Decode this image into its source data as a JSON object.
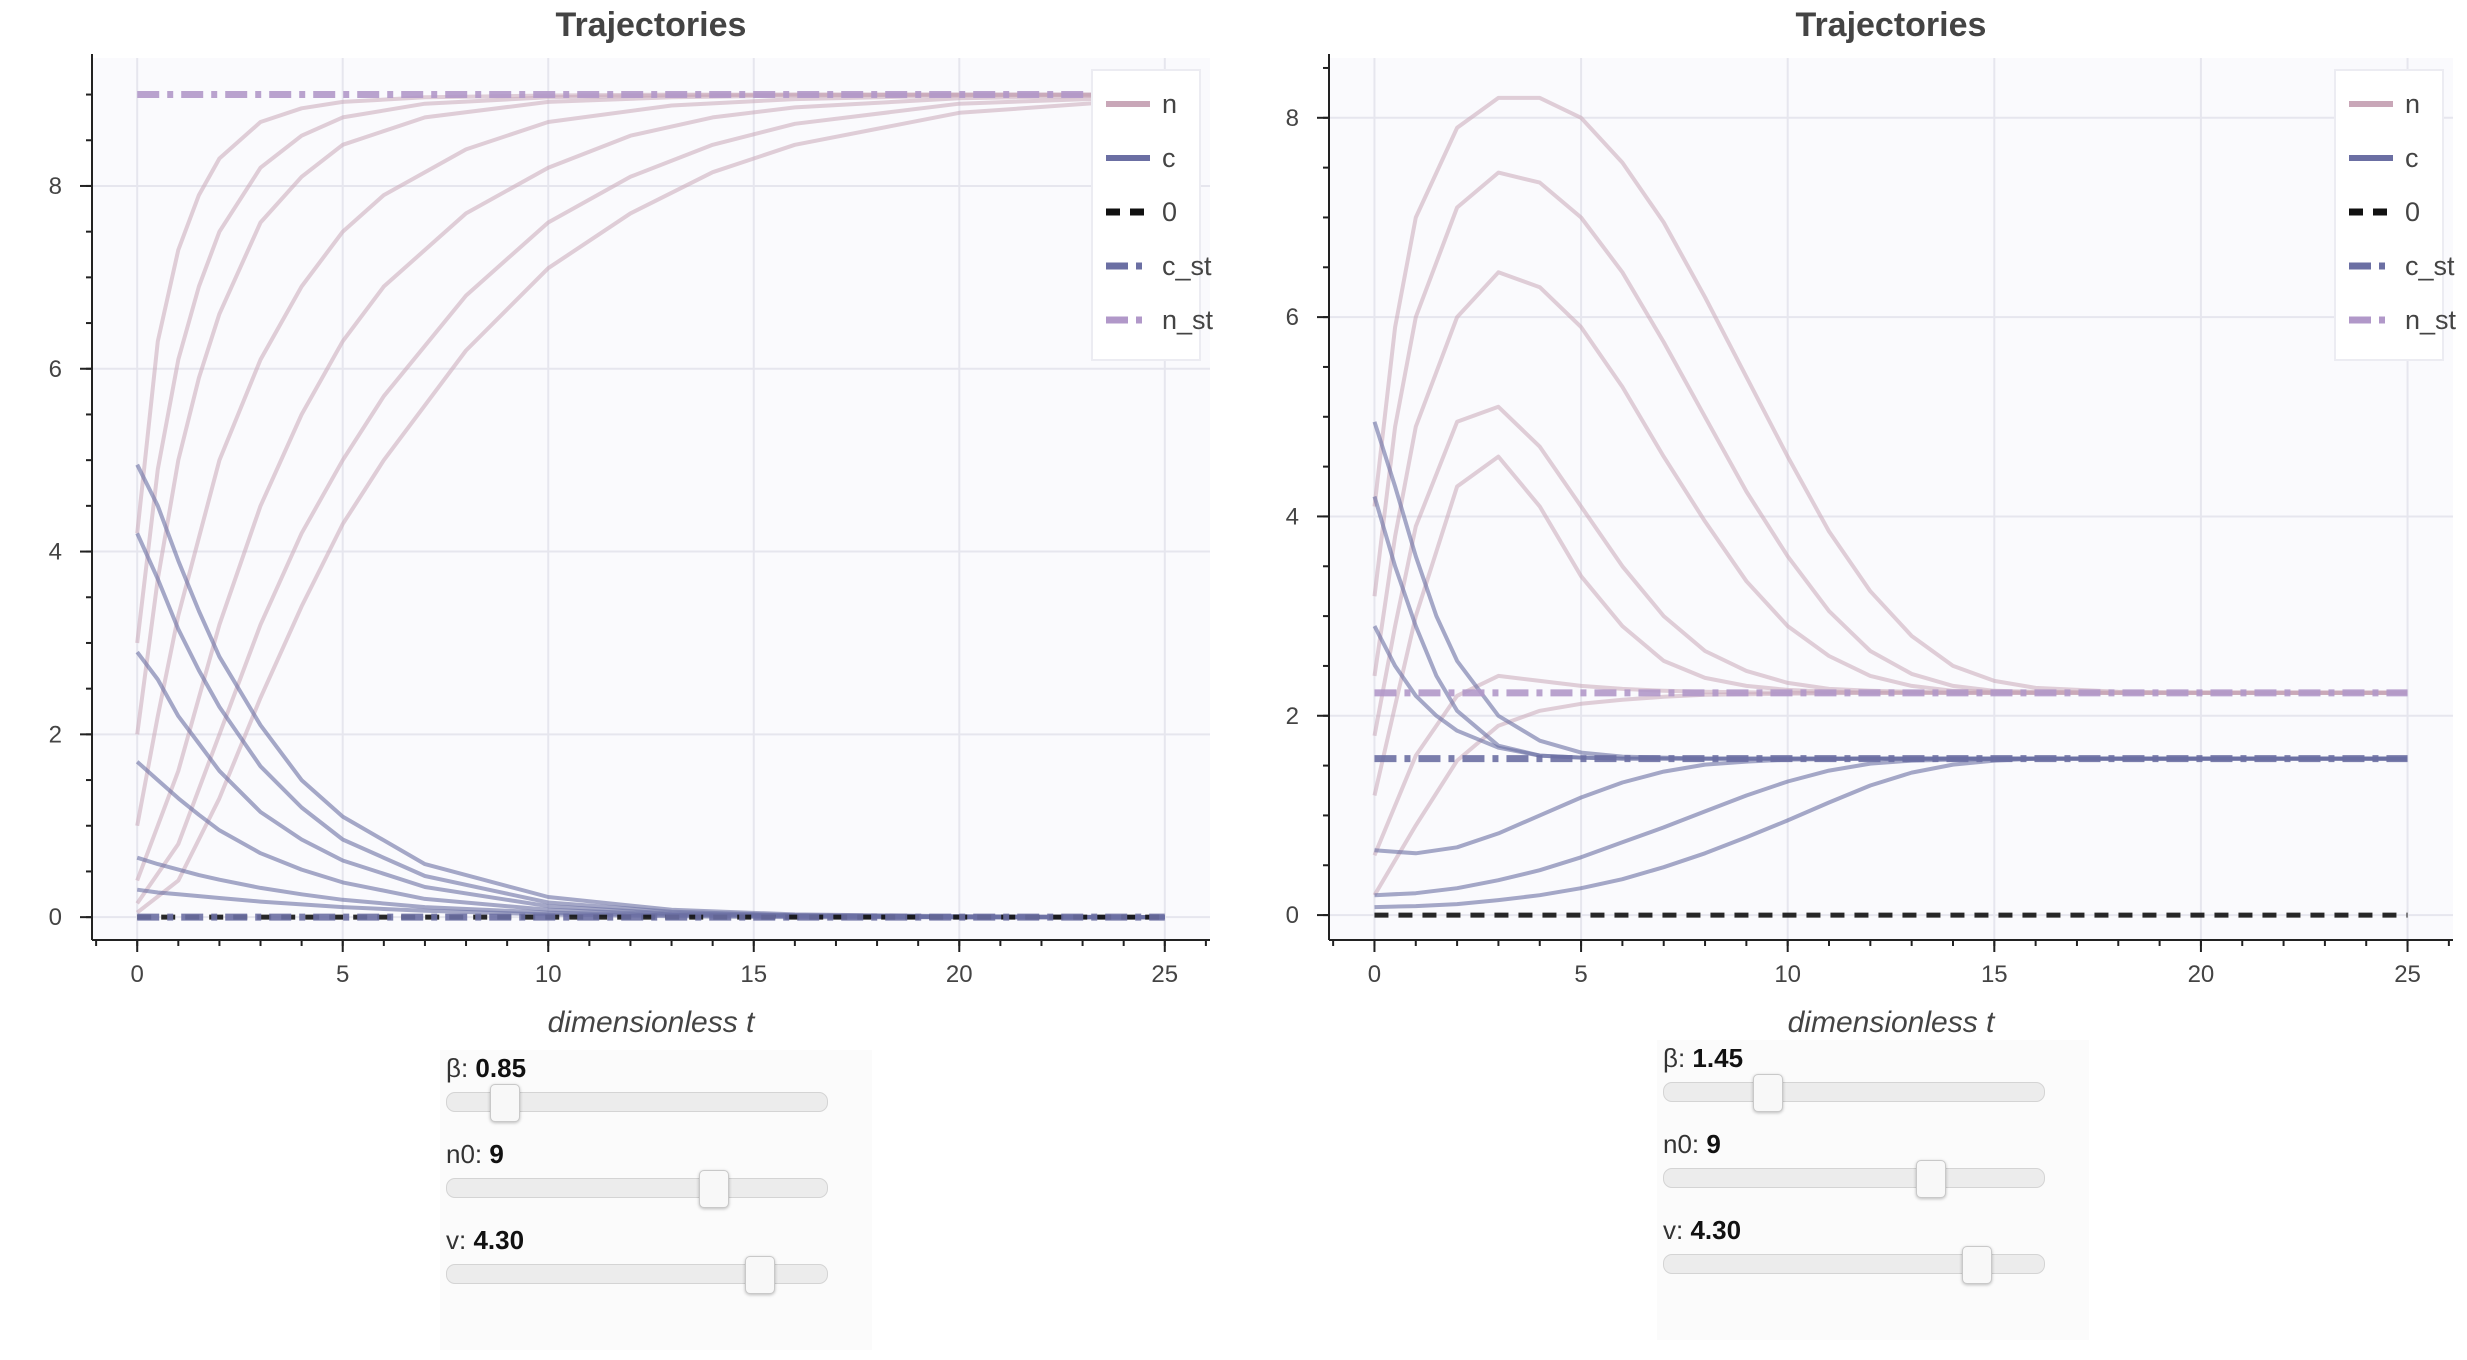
{
  "chart_data": [
    {
      "type": "line",
      "title": "Trajectories",
      "xlabel": "dimensionless t",
      "ylabel": "",
      "xlim": [
        -1.1,
        26.1
      ],
      "ylim": [
        -0.25,
        9.4
      ],
      "xticks": [
        0,
        5,
        10,
        15,
        20,
        25
      ],
      "yticks": [
        0,
        2,
        4,
        6,
        8
      ],
      "legend_position": "top-right",
      "legend": [
        {
          "key": "n",
          "label": "n",
          "style": "solid",
          "color": "#c9a7b8"
        },
        {
          "key": "c",
          "label": "c",
          "style": "solid",
          "color": "#6b6fa3"
        },
        {
          "key": "zero",
          "label": "0",
          "style": "dashed",
          "color": "#111111"
        },
        {
          "key": "c_st",
          "label": "c_st",
          "style": "dashdot",
          "color": "#6b6fa3"
        },
        {
          "key": "n_st",
          "label": "n_st",
          "style": "dashdot",
          "color": "#b198c9"
        }
      ],
      "steady_state": {
        "n_st": 9.0,
        "c_st": 0.0,
        "zero": 0.0
      },
      "series": [
        {
          "key": "n",
          "x": [
            0,
            0.5,
            1,
            1.5,
            2,
            3,
            4,
            5,
            7,
            10,
            13,
            16,
            20,
            25
          ],
          "y": [
            4.2,
            6.3,
            7.3,
            7.9,
            8.3,
            8.7,
            8.85,
            8.92,
            8.97,
            8.99,
            9.0,
            9.0,
            9.0,
            9.0
          ]
        },
        {
          "key": "n",
          "x": [
            0,
            0.5,
            1,
            1.5,
            2,
            3,
            4,
            5,
            7,
            10,
            13,
            16,
            20,
            25
          ],
          "y": [
            3.0,
            4.9,
            6.1,
            6.9,
            7.5,
            8.2,
            8.55,
            8.75,
            8.9,
            8.97,
            8.99,
            9.0,
            9.0,
            9.0
          ]
        },
        {
          "key": "n",
          "x": [
            0,
            0.5,
            1,
            1.5,
            2,
            3,
            4,
            5,
            7,
            10,
            13,
            16,
            20,
            25
          ],
          "y": [
            2.0,
            3.7,
            5.0,
            5.9,
            6.6,
            7.6,
            8.1,
            8.45,
            8.75,
            8.92,
            8.97,
            8.99,
            9.0,
            9.0
          ]
        },
        {
          "key": "n",
          "x": [
            0,
            0.5,
            1,
            2,
            3,
            4,
            5,
            6,
            8,
            10,
            13,
            16,
            20,
            25
          ],
          "y": [
            1.0,
            2.2,
            3.3,
            5.0,
            6.1,
            6.9,
            7.5,
            7.9,
            8.4,
            8.7,
            8.88,
            8.95,
            8.99,
            9.0
          ]
        },
        {
          "key": "n",
          "x": [
            0,
            1,
            2,
            3,
            4,
            5,
            6,
            8,
            10,
            12,
            14,
            16,
            20,
            25
          ],
          "y": [
            0.4,
            1.6,
            3.2,
            4.5,
            5.5,
            6.3,
            6.9,
            7.7,
            8.2,
            8.55,
            8.75,
            8.86,
            8.96,
            9.0
          ]
        },
        {
          "key": "n",
          "x": [
            0,
            1,
            2,
            3,
            4,
            5,
            6,
            8,
            10,
            12,
            14,
            16,
            20,
            25
          ],
          "y": [
            0.15,
            0.8,
            2.0,
            3.2,
            4.2,
            5.0,
            5.7,
            6.8,
            7.6,
            8.1,
            8.45,
            8.68,
            8.9,
            8.98
          ]
        },
        {
          "key": "n",
          "x": [
            0,
            1,
            2,
            3,
            4,
            5,
            6,
            8,
            10,
            12,
            14,
            16,
            20,
            25
          ],
          "y": [
            0.05,
            0.4,
            1.3,
            2.4,
            3.4,
            4.3,
            5.0,
            6.2,
            7.1,
            7.7,
            8.15,
            8.45,
            8.8,
            8.96
          ]
        },
        {
          "key": "c",
          "x": [
            0,
            0.5,
            1,
            1.5,
            2,
            3,
            4,
            5,
            7,
            10,
            13,
            16,
            20,
            25
          ],
          "y": [
            4.95,
            4.5,
            3.9,
            3.35,
            2.85,
            2.1,
            1.5,
            1.1,
            0.58,
            0.22,
            0.08,
            0.03,
            0.01,
            0.0
          ]
        },
        {
          "key": "c",
          "x": [
            0,
            0.5,
            1,
            1.5,
            2,
            3,
            4,
            5,
            7,
            10,
            13,
            16,
            20,
            25
          ],
          "y": [
            4.2,
            3.7,
            3.15,
            2.7,
            2.3,
            1.65,
            1.2,
            0.85,
            0.45,
            0.16,
            0.06,
            0.02,
            0.01,
            0.0
          ]
        },
        {
          "key": "c",
          "x": [
            0,
            0.5,
            1,
            1.5,
            2,
            3,
            4,
            5,
            7,
            10,
            13,
            16,
            20,
            25
          ],
          "y": [
            2.9,
            2.6,
            2.2,
            1.9,
            1.6,
            1.15,
            0.85,
            0.62,
            0.33,
            0.12,
            0.04,
            0.02,
            0.0,
            0.0
          ]
        },
        {
          "key": "c",
          "x": [
            0,
            0.5,
            1,
            1.5,
            2,
            3,
            4,
            5,
            7,
            10,
            13,
            16,
            20,
            25
          ],
          "y": [
            1.7,
            1.5,
            1.3,
            1.12,
            0.95,
            0.7,
            0.52,
            0.38,
            0.2,
            0.08,
            0.03,
            0.01,
            0.0,
            0.0
          ]
        },
        {
          "key": "c",
          "x": [
            0,
            0.5,
            1,
            1.5,
            2,
            3,
            4,
            5,
            7,
            10,
            13,
            16,
            20,
            25
          ],
          "y": [
            0.65,
            0.58,
            0.52,
            0.46,
            0.41,
            0.32,
            0.25,
            0.19,
            0.11,
            0.05,
            0.02,
            0.01,
            0.0,
            0.0
          ]
        },
        {
          "key": "c",
          "x": [
            0,
            0.5,
            1,
            1.5,
            2,
            3,
            4,
            5,
            7,
            10,
            13,
            16,
            20,
            25
          ],
          "y": [
            0.3,
            0.27,
            0.25,
            0.23,
            0.21,
            0.17,
            0.14,
            0.11,
            0.07,
            0.03,
            0.01,
            0.0,
            0.0,
            0.0
          ]
        }
      ]
    },
    {
      "type": "line",
      "title": "Trajectories",
      "xlabel": "dimensionless t",
      "ylabel": "",
      "xlim": [
        -1.1,
        26.1
      ],
      "ylim": [
        -0.25,
        8.6
      ],
      "xticks": [
        0,
        5,
        10,
        15,
        20,
        25
      ],
      "yticks": [
        0,
        2,
        4,
        6,
        8
      ],
      "legend_position": "top-right",
      "legend": [
        {
          "key": "n",
          "label": "n",
          "style": "solid",
          "color": "#c9a7b8"
        },
        {
          "key": "c",
          "label": "c",
          "style": "solid",
          "color": "#6b6fa3"
        },
        {
          "key": "zero",
          "label": "0",
          "style": "dashed",
          "color": "#111111"
        },
        {
          "key": "c_st",
          "label": "c_st",
          "style": "dashdot",
          "color": "#6b6fa3"
        },
        {
          "key": "n_st",
          "label": "n_st",
          "style": "dashdot",
          "color": "#b198c9"
        }
      ],
      "steady_state": {
        "n_st": 2.23,
        "c_st": 1.57,
        "zero": 0.0
      },
      "series": [
        {
          "key": "n",
          "x": [
            0,
            0.5,
            1,
            2,
            3,
            4,
            5,
            6,
            7,
            8,
            9,
            10,
            11,
            12,
            13,
            14,
            15,
            16,
            18,
            20,
            25
          ],
          "y": [
            4.1,
            5.9,
            7.0,
            7.9,
            8.2,
            8.2,
            8.0,
            7.55,
            6.95,
            6.2,
            5.4,
            4.6,
            3.85,
            3.25,
            2.8,
            2.5,
            2.35,
            2.28,
            2.24,
            2.23,
            2.23
          ]
        },
        {
          "key": "n",
          "x": [
            0,
            0.5,
            1,
            2,
            3,
            4,
            5,
            6,
            7,
            8,
            9,
            10,
            11,
            12,
            13,
            14,
            15,
            16,
            18,
            20,
            25
          ],
          "y": [
            3.2,
            4.9,
            6.0,
            7.1,
            7.45,
            7.35,
            7.0,
            6.45,
            5.75,
            5.0,
            4.25,
            3.6,
            3.05,
            2.65,
            2.42,
            2.3,
            2.25,
            2.24,
            2.23,
            2.23,
            2.23
          ]
        },
        {
          "key": "n",
          "x": [
            0,
            0.5,
            1,
            2,
            3,
            4,
            5,
            6,
            7,
            8,
            9,
            10,
            11,
            12,
            13,
            14,
            15,
            16,
            18,
            20,
            25
          ],
          "y": [
            2.4,
            3.8,
            4.9,
            6.0,
            6.45,
            6.3,
            5.9,
            5.3,
            4.6,
            3.95,
            3.35,
            2.9,
            2.6,
            2.4,
            2.3,
            2.25,
            2.24,
            2.23,
            2.23,
            2.23,
            2.23
          ]
        },
        {
          "key": "n",
          "x": [
            0,
            0.5,
            1,
            2,
            3,
            4,
            5,
            6,
            7,
            8,
            9,
            10,
            11,
            12,
            13,
            14,
            15,
            16,
            18,
            20,
            25
          ],
          "y": [
            1.8,
            2.9,
            3.9,
            4.95,
            5.1,
            4.7,
            4.1,
            3.5,
            3.0,
            2.65,
            2.45,
            2.33,
            2.27,
            2.25,
            2.24,
            2.23,
            2.23,
            2.23,
            2.23,
            2.23,
            2.23
          ]
        },
        {
          "key": "n",
          "x": [
            0,
            0.5,
            1,
            2,
            3,
            4,
            5,
            6,
            7,
            8,
            9,
            10,
            11,
            12,
            13,
            14,
            15,
            16,
            18,
            20,
            25
          ],
          "y": [
            1.2,
            2.1,
            3.0,
            4.3,
            4.6,
            4.1,
            3.4,
            2.9,
            2.55,
            2.38,
            2.3,
            2.26,
            2.24,
            2.23,
            2.23,
            2.23,
            2.23,
            2.23,
            2.23,
            2.23,
            2.23
          ]
        },
        {
          "key": "n",
          "x": [
            0,
            1,
            2,
            3,
            4,
            5,
            6,
            7,
            8,
            10,
            12,
            14,
            16,
            20,
            25
          ],
          "y": [
            0.6,
            1.6,
            2.2,
            2.4,
            2.35,
            2.3,
            2.27,
            2.25,
            2.24,
            2.23,
            2.23,
            2.23,
            2.23,
            2.23,
            2.23
          ]
        },
        {
          "key": "n",
          "x": [
            0,
            1,
            2,
            3,
            4,
            5,
            6,
            7,
            8,
            10,
            12,
            14,
            16,
            20,
            25
          ],
          "y": [
            0.2,
            0.9,
            1.55,
            1.9,
            2.05,
            2.12,
            2.16,
            2.19,
            2.21,
            2.22,
            2.23,
            2.23,
            2.23,
            2.23,
            2.23
          ]
        },
        {
          "key": "c",
          "x": [
            0,
            0.5,
            1,
            1.5,
            2,
            3,
            4,
            5,
            6,
            7,
            8,
            10,
            12,
            14,
            16,
            20,
            25
          ],
          "y": [
            4.95,
            4.3,
            3.6,
            3.0,
            2.55,
            2.0,
            1.75,
            1.63,
            1.59,
            1.58,
            1.57,
            1.57,
            1.57,
            1.57,
            1.57,
            1.57,
            1.57
          ]
        },
        {
          "key": "c",
          "x": [
            0,
            0.5,
            1,
            1.5,
            2,
            3,
            4,
            5,
            6,
            7,
            8,
            10,
            12,
            14,
            16,
            20,
            25
          ],
          "y": [
            4.2,
            3.5,
            2.9,
            2.4,
            2.05,
            1.7,
            1.6,
            1.58,
            1.57,
            1.57,
            1.57,
            1.57,
            1.57,
            1.57,
            1.57,
            1.57,
            1.57
          ]
        },
        {
          "key": "c",
          "x": [
            0,
            0.5,
            1,
            1.5,
            2,
            3,
            4,
            5,
            6,
            7,
            8,
            10,
            12,
            14,
            16,
            20,
            25
          ],
          "y": [
            2.9,
            2.5,
            2.2,
            2.0,
            1.85,
            1.68,
            1.6,
            1.58,
            1.57,
            1.57,
            1.57,
            1.57,
            1.57,
            1.57,
            1.57,
            1.57,
            1.57
          ]
        },
        {
          "key": "c",
          "x": [
            0,
            1,
            2,
            3,
            4,
            5,
            6,
            7,
            8,
            9,
            10,
            12,
            14,
            16,
            20,
            25
          ],
          "y": [
            0.65,
            0.62,
            0.68,
            0.82,
            1.0,
            1.18,
            1.33,
            1.44,
            1.51,
            1.54,
            1.56,
            1.57,
            1.57,
            1.57,
            1.57,
            1.57
          ]
        },
        {
          "key": "c",
          "x": [
            0,
            1,
            2,
            3,
            4,
            5,
            6,
            7,
            8,
            9,
            10,
            11,
            12,
            13,
            14,
            16,
            20,
            25
          ],
          "y": [
            0.2,
            0.22,
            0.27,
            0.35,
            0.45,
            0.58,
            0.73,
            0.88,
            1.04,
            1.2,
            1.34,
            1.45,
            1.52,
            1.55,
            1.56,
            1.57,
            1.57,
            1.57
          ]
        },
        {
          "key": "c",
          "x": [
            0,
            1,
            2,
            3,
            4,
            5,
            6,
            7,
            8,
            9,
            10,
            11,
            12,
            13,
            14,
            15,
            16,
            20,
            25
          ],
          "y": [
            0.08,
            0.09,
            0.11,
            0.15,
            0.2,
            0.27,
            0.36,
            0.48,
            0.62,
            0.78,
            0.95,
            1.13,
            1.3,
            1.43,
            1.51,
            1.55,
            1.57,
            1.57,
            1.57
          ]
        }
      ]
    }
  ],
  "widgets": [
    {
      "sliders": [
        {
          "name": "β",
          "value": "0.85",
          "fraction": 0.15
        },
        {
          "name": "n0",
          "value": "9",
          "fraction": 0.7
        },
        {
          "name": "v",
          "value": "4.30",
          "fraction": 0.82
        }
      ]
    },
    {
      "sliders": [
        {
          "name": "β",
          "value": "1.45",
          "fraction": 0.27
        },
        {
          "name": "n0",
          "value": "9",
          "fraction": 0.7
        },
        {
          "name": "v",
          "value": "4.30",
          "fraction": 0.82
        }
      ]
    }
  ]
}
